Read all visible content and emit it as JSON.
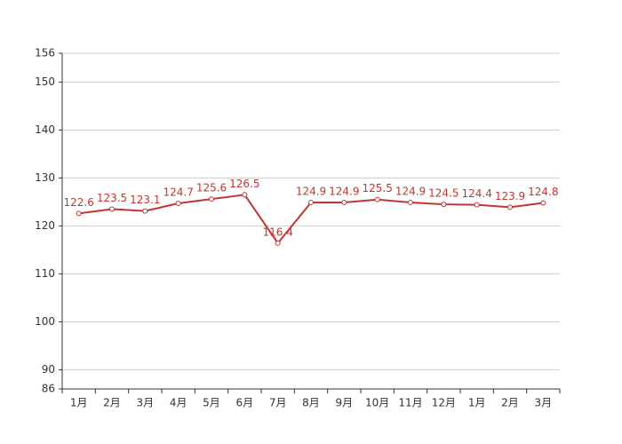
{
  "chart_data": {
    "type": "line",
    "categories": [
      "1月",
      "2月",
      "3月",
      "4月",
      "5月",
      "6月",
      "7月",
      "8月",
      "9月",
      "10月",
      "11月",
      "12月",
      "1月",
      "2月",
      "3月"
    ],
    "series": [
      {
        "color": "#c23531",
        "values": [
          122.6,
          123.5,
          123.1,
          124.7,
          125.6,
          126.5,
          116.4,
          124.9,
          124.9,
          125.5,
          124.9,
          124.5,
          124.4,
          123.9,
          124.8
        ]
      }
    ],
    "ylim": [
      86,
      156
    ],
    "yticks": [
      86,
      90,
      100,
      110,
      120,
      130,
      140,
      150,
      156
    ],
    "grid": true,
    "data_labels": true
  }
}
